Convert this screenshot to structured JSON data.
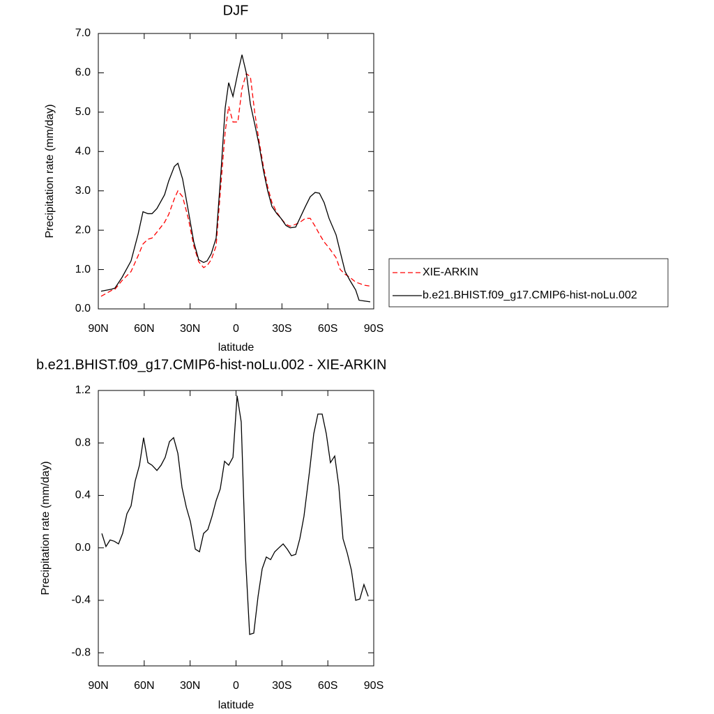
{
  "chart_data": [
    {
      "type": "line",
      "title": "DJF",
      "xlabel": "latitude",
      "ylabel": "Precipitation rate (mm/day)",
      "x": [
        88.2,
        81.3,
        79.1,
        74.5,
        68.6,
        64.0,
        60.8,
        57.6,
        54.9,
        51.7,
        46.7,
        44.0,
        40.3,
        38.0,
        34.9,
        31.2,
        27.6,
        24.4,
        21.2,
        18.9,
        16.2,
        13.0,
        9.8,
        7.1,
        4.8,
        2.0,
        -1.2,
        -3.9,
        -6.7,
        -9.4,
        -12.2,
        -14.9,
        -18.0,
        -20.7,
        -23.5,
        -26.7,
        -29.4,
        -32.6,
        -35.4,
        -39.0,
        -41.7,
        -45.3,
        -48.5,
        -51.7,
        -54.5,
        -57.6,
        -60.8,
        -65.4,
        -68.1,
        -71.3,
        -74.5,
        -78.2,
        -80.4,
        -84.1,
        -87.7
      ],
      "series": [
        {
          "name": "XIE-ARKIN",
          "color": "#ff0000",
          "dashed": true,
          "values": [
            0.32,
            0.47,
            0.5,
            0.72,
            0.95,
            1.35,
            1.65,
            1.77,
            1.8,
            1.95,
            2.2,
            2.4,
            2.8,
            3.0,
            2.85,
            2.3,
            1.6,
            1.2,
            1.05,
            1.1,
            1.25,
            1.6,
            3.2,
            4.5,
            5.15,
            4.75,
            4.75,
            5.6,
            5.98,
            5.9,
            5.0,
            4.3,
            3.6,
            3.1,
            2.7,
            2.45,
            2.3,
            2.15,
            2.1,
            2.15,
            2.2,
            2.3,
            2.3,
            2.1,
            1.9,
            1.7,
            1.55,
            1.3,
            1.0,
            0.88,
            0.8,
            0.68,
            0.65,
            0.6,
            0.58
          ]
        },
        {
          "name": "b.e21.BHIST.f09_g17.CMIP6-hist-noLu.002",
          "color": "#000000",
          "dashed": false,
          "values": [
            0.45,
            0.5,
            0.53,
            0.8,
            1.22,
            1.9,
            2.47,
            2.42,
            2.42,
            2.55,
            2.9,
            3.25,
            3.62,
            3.7,
            3.3,
            2.5,
            1.7,
            1.25,
            1.18,
            1.22,
            1.4,
            1.8,
            3.5,
            5.1,
            5.75,
            5.4,
            6.0,
            6.46,
            6.0,
            5.2,
            4.7,
            4.2,
            3.5,
            3.0,
            2.6,
            2.42,
            2.3,
            2.12,
            2.06,
            2.08,
            2.3,
            2.6,
            2.85,
            2.96,
            2.94,
            2.7,
            2.3,
            1.88,
            1.45,
            0.95,
            0.72,
            0.48,
            0.22,
            0.2,
            0.18
          ]
        }
      ],
      "xlim": [
        90,
        -90
      ],
      "xticks": [
        {
          "value": 90,
          "label": "90N"
        },
        {
          "value": 60,
          "label": "60N"
        },
        {
          "value": 30,
          "label": "30N"
        },
        0,
        {
          "value": -30,
          "label": "30S"
        },
        {
          "value": -60,
          "label": "60S"
        },
        {
          "value": -90,
          "label": "90S"
        }
      ],
      "ylim": [
        0,
        7
      ],
      "yticks": [
        {
          "value": 0,
          "label": "0.0"
        },
        {
          "value": 1,
          "label": "1.0"
        },
        {
          "value": 2,
          "label": "2.0"
        },
        {
          "value": 3,
          "label": "3.0"
        },
        {
          "value": 4,
          "label": "4.0"
        },
        {
          "value": 5,
          "label": "5.0"
        },
        {
          "value": 6,
          "label": "6.0"
        },
        {
          "value": 7,
          "label": "7.0"
        }
      ],
      "legend": "outside-right"
    },
    {
      "type": "line",
      "title": "b.e21.BHIST.f09_g17.CMIP6-hist-noLu.002 - XIE-ARKIN",
      "xlabel": "latitude",
      "ylabel": "Precipitation rate (mm/day)",
      "x": [
        87.7,
        85.0,
        82.3,
        79.5,
        76.8,
        74.1,
        71.3,
        68.6,
        65.9,
        63.1,
        60.4,
        57.6,
        54.9,
        51.7,
        49.0,
        46.3,
        43.5,
        40.8,
        38.0,
        35.3,
        32.5,
        29.8,
        26.6,
        23.9,
        21.2,
        18.4,
        15.7,
        13.0,
        10.3,
        7.5,
        4.8,
        2.0,
        -0.7,
        -3.4,
        -6.2,
        -8.9,
        -11.6,
        -14.4,
        -17.1,
        -19.8,
        -22.6,
        -25.3,
        -28.0,
        -30.8,
        -33.5,
        -36.2,
        -39.0,
        -41.7,
        -44.4,
        -48.1,
        -50.8,
        -53.5,
        -56.3,
        -59.0,
        -61.7,
        -64.5,
        -67.2,
        -69.9,
        -72.7,
        -75.4,
        -78.2,
        -80.9,
        -83.6,
        -86.4
      ],
      "series": [
        {
          "color": "#000000",
          "dashed": false,
          "values": [
            0.11,
            0.01,
            0.06,
            0.05,
            0.03,
            0.11,
            0.26,
            0.32,
            0.51,
            0.63,
            0.84,
            0.65,
            0.63,
            0.59,
            0.63,
            0.69,
            0.81,
            0.84,
            0.72,
            0.46,
            0.31,
            0.2,
            -0.01,
            -0.03,
            0.11,
            0.14,
            0.24,
            0.36,
            0.45,
            0.66,
            0.63,
            0.69,
            1.16,
            0.96,
            -0.07,
            -0.66,
            -0.65,
            -0.37,
            -0.16,
            -0.07,
            -0.09,
            -0.03,
            0.0,
            0.03,
            -0.01,
            -0.06,
            -0.05,
            0.07,
            0.24,
            0.59,
            0.87,
            1.02,
            1.02,
            0.87,
            0.65,
            0.7,
            0.47,
            0.07,
            -0.04,
            -0.17,
            -0.4,
            -0.39,
            -0.28,
            -0.37
          ]
        }
      ],
      "xlim": [
        90,
        -90
      ],
      "xticks": [
        {
          "value": 90,
          "label": "90N"
        },
        {
          "value": 60,
          "label": "60N"
        },
        {
          "value": 30,
          "label": "30N"
        },
        0,
        {
          "value": -30,
          "label": "30S"
        },
        {
          "value": -60,
          "label": "60S"
        },
        {
          "value": -90,
          "label": "90S"
        }
      ],
      "ylim": [
        -0.9,
        1.2
      ],
      "yticks": [
        -0.8,
        -0.4,
        {
          "value": 0,
          "label": "0.0"
        },
        0.4,
        0.8,
        1.2
      ]
    }
  ]
}
